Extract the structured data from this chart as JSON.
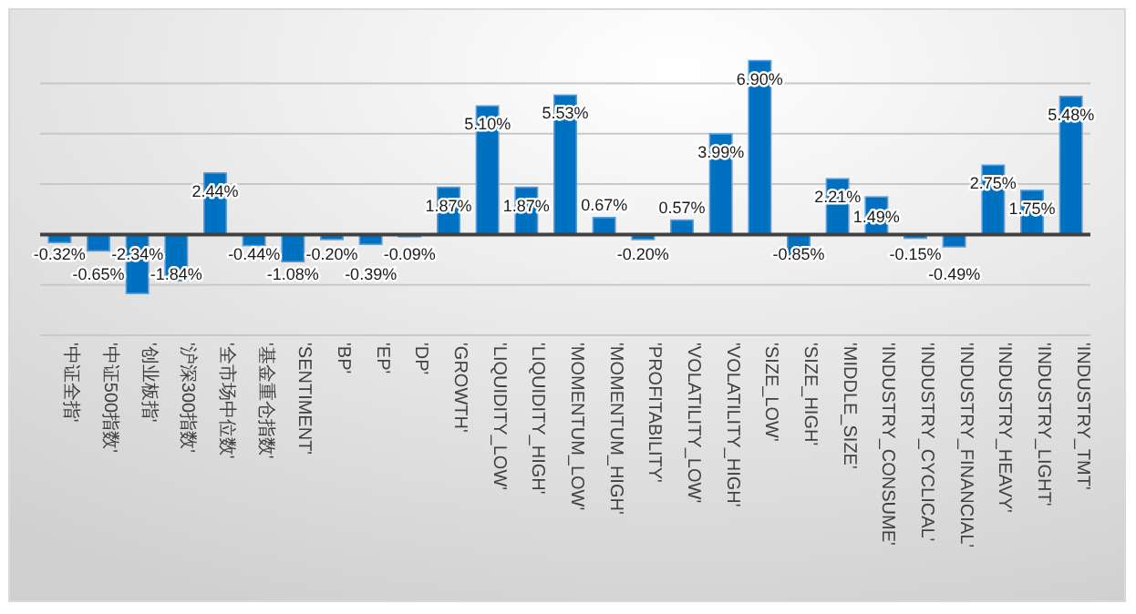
{
  "chart_data": {
    "type": "bar",
    "categories": [
      "'中证全指'",
      "'中证500指数'",
      "'创业板指'",
      "'沪深300指数'",
      "'全市场中位数'",
      "'基金重仓指数'",
      "'SENTIMENT'",
      "'BP'",
      "'EP'",
      "'DP'",
      "'GROWTH'",
      "'LIQUIDITY_LOW'",
      "'LIQUIDITY_HIGH'",
      "'MOMENTUM_LOW'",
      "'MOMENTUM_HIGH'",
      "'PROFITABILITY'",
      "'VOLATILITY_LOW'",
      "'VOLATILITY_HIGH'",
      "'SIZE_LOW'",
      "'SIZE_HIGH'",
      "'MIDDLE_SIZE'",
      "'INDUSTRY_CONSUME'",
      "'INDUSTRY_CYCLICAL'",
      "'INDUSTRY_FINANCIAL'",
      "'INDUSTRY_HEAVY'",
      "'INDUSTRY_LIGHT'",
      "'INDUSTRY_TMT'"
    ],
    "values": [
      -0.32,
      -0.65,
      -2.34,
      -1.84,
      2.44,
      -0.44,
      -1.08,
      -0.2,
      -0.39,
      -0.09,
      1.87,
      5.1,
      1.87,
      5.53,
      0.67,
      -0.2,
      0.57,
      3.99,
      6.9,
      -0.85,
      2.21,
      1.49,
      -0.15,
      -0.49,
      2.75,
      1.75,
      5.48
    ],
    "value_labels": [
      "-0.32%",
      "-0.65%",
      "-2.34%",
      "-1.84%",
      "2.44%",
      "-0.44%",
      "-1.08%",
      "-0.20%",
      "-0.39%",
      "-0.09%",
      "1.87%",
      "5.10%",
      "1.87%",
      "5.53%",
      "0.67%",
      "-0.20%",
      "0.57%",
      "3.99%",
      "6.90%",
      "-0.85%",
      "2.21%",
      "1.49%",
      "-0.15%",
      "-0.49%",
      "2.75%",
      "1.75%",
      "5.48%"
    ],
    "color": "#0070c0",
    "yticks": [
      {
        "value": -4,
        "label": null
      },
      {
        "value": -2,
        "label": null
      },
      {
        "value": 0,
        "label": null
      },
      {
        "value": 2,
        "label": null
      },
      {
        "value": 4,
        "label": null
      },
      {
        "value": 6,
        "label": null
      }
    ],
    "tick_labels": "x",
    "grid": "y"
  }
}
